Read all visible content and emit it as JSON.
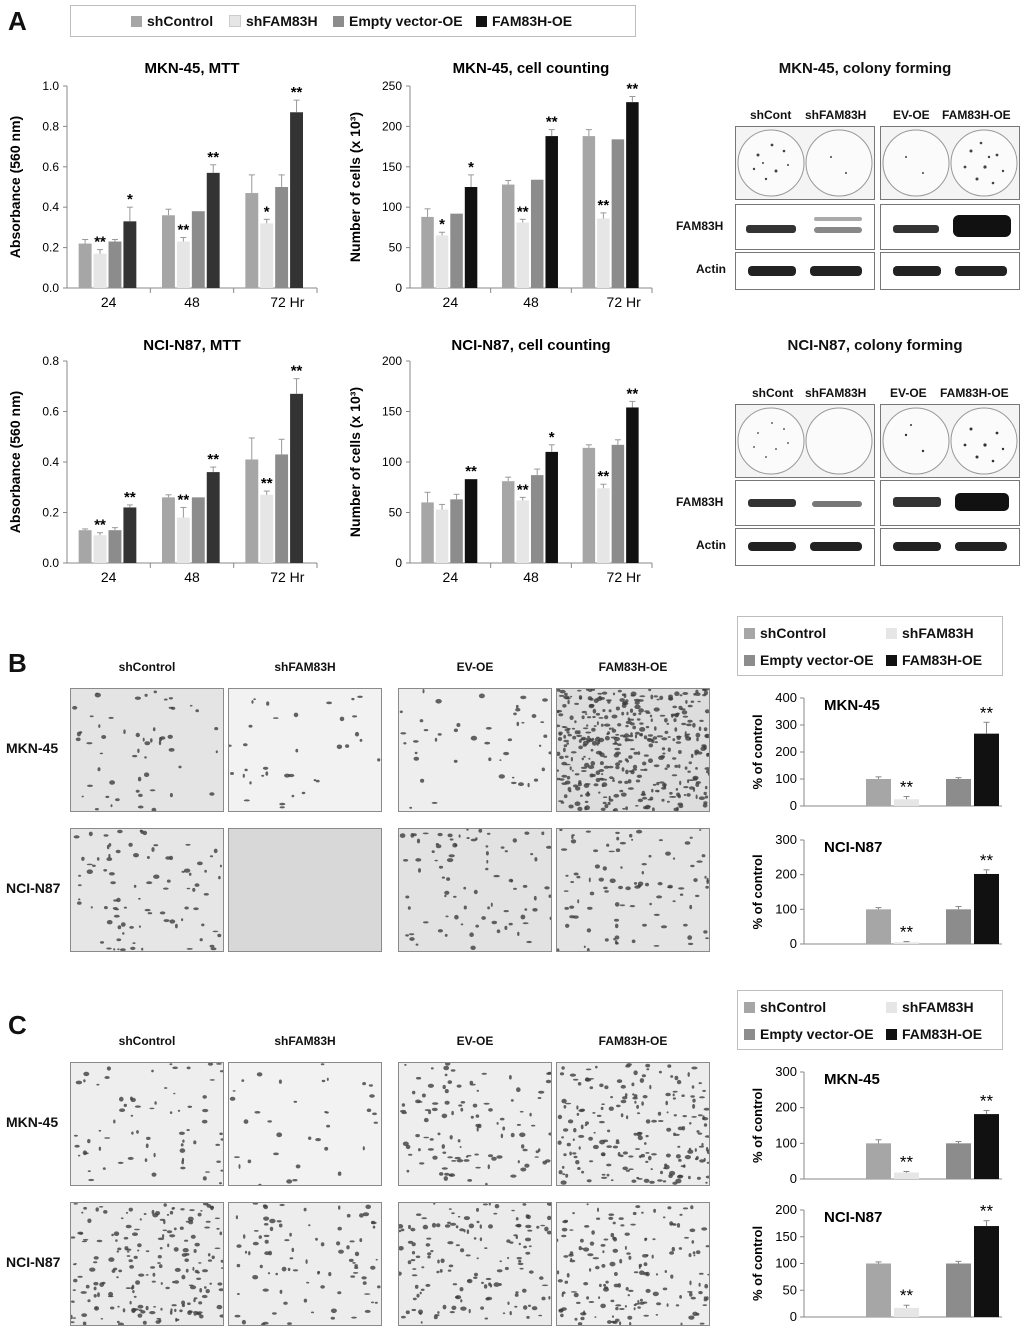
{
  "panels": {
    "a": "A",
    "b": "B",
    "c": "C"
  },
  "legend": [
    {
      "label": "shControl",
      "color": "#a6a6a6"
    },
    {
      "label": "shFAM83H",
      "color": "#e6e6e6"
    },
    {
      "label": "Empty vector-OE",
      "color": "#8c8c8c"
    },
    {
      "label": "FAM83H-OE",
      "color": "#111111"
    }
  ],
  "colony": {
    "mkn_title": "MKN-45, colony forming",
    "nci_title": "NCI-N87, colony forming",
    "lanes": [
      "shCont",
      "shFAM83H",
      "EV-OE",
      "FAM83H-OE"
    ],
    "rows": [
      "FAM83H",
      "Actin"
    ]
  },
  "micro": {
    "columns": [
      "shControl",
      "shFAM83H",
      "EV-OE",
      "FAM83H-OE"
    ],
    "rows": [
      "MKN-45",
      "NCI-N87"
    ]
  },
  "chart_data": [
    {
      "id": "mkn_mtt",
      "type": "bar",
      "title": "MKN-45, MTT",
      "ylabel": "Absorbance (560 nm)",
      "categories": [
        "24",
        "48",
        "72 Hr"
      ],
      "ylim": [
        0,
        1.0
      ],
      "yticks": [
        "0.0",
        "0.2",
        "0.4",
        "0.6",
        "0.8",
        "1.0"
      ],
      "series": [
        {
          "name": "shControl",
          "values": [
            0.22,
            0.36,
            0.47
          ],
          "err": [
            0.02,
            0.03,
            0.09
          ],
          "sig": [
            "",
            "",
            ""
          ]
        },
        {
          "name": "shFAM83H",
          "values": [
            0.17,
            0.23,
            0.32
          ],
          "err": [
            0.02,
            0.02,
            0.02
          ],
          "sig": [
            "**",
            "**",
            "*"
          ]
        },
        {
          "name": "Empty vector-OE",
          "values": [
            0.23,
            0.38,
            0.5
          ],
          "err": [
            0.01,
            0.0,
            0.06
          ],
          "sig": [
            "",
            "",
            ""
          ]
        },
        {
          "name": "FAM83H-OE",
          "values": [
            0.33,
            0.57,
            0.87
          ],
          "err": [
            0.07,
            0.04,
            0.06
          ],
          "sig": [
            "*",
            "**",
            "**"
          ]
        }
      ]
    },
    {
      "id": "mkn_count",
      "type": "bar",
      "title": "MKN-45, cell counting",
      "ylabel": "Number of cells (x 10³)",
      "categories": [
        "24",
        "48",
        "72 Hr"
      ],
      "ylim": [
        0,
        250
      ],
      "yticks": [
        "0",
        "50",
        "100",
        "150",
        "200",
        "250"
      ],
      "series": [
        {
          "name": "shControl",
          "values": [
            88,
            128,
            188
          ],
          "err": [
            10,
            5,
            8
          ],
          "sig": [
            "",
            "",
            ""
          ]
        },
        {
          "name": "shFAM83H",
          "values": [
            65,
            81,
            86
          ],
          "err": [
            4,
            4,
            7
          ],
          "sig": [
            "*",
            "**",
            "**"
          ]
        },
        {
          "name": "Empty vector-OE",
          "values": [
            92,
            134,
            184
          ],
          "err": [
            0,
            0,
            0
          ],
          "sig": [
            "",
            "",
            ""
          ]
        },
        {
          "name": "FAM83H-OE",
          "values": [
            125,
            188,
            230
          ],
          "err": [
            15,
            8,
            7
          ],
          "sig": [
            "*",
            "**",
            "**"
          ]
        }
      ]
    },
    {
      "id": "nci_mtt",
      "type": "bar",
      "title": "NCI-N87, MTT",
      "ylabel": "Absorbance (560 nm)",
      "categories": [
        "24",
        "48",
        "72 Hr"
      ],
      "ylim": [
        0,
        0.8
      ],
      "yticks": [
        "0.0",
        "0.2",
        "0.4",
        "0.6",
        "0.8"
      ],
      "series": [
        {
          "name": "shControl",
          "values": [
            0.13,
            0.26,
            0.41
          ],
          "err": [
            0.005,
            0.01,
            0.085
          ],
          "sig": [
            "",
            "",
            ""
          ]
        },
        {
          "name": "shFAM83H",
          "values": [
            0.11,
            0.18,
            0.27
          ],
          "err": [
            0.01,
            0.04,
            0.015
          ],
          "sig": [
            "**",
            "**",
            "**"
          ]
        },
        {
          "name": "Empty vector-OE",
          "values": [
            0.13,
            0.26,
            0.43
          ],
          "err": [
            0.01,
            0.0,
            0.06
          ],
          "sig": [
            "",
            "",
            ""
          ]
        },
        {
          "name": "FAM83H-OE",
          "values": [
            0.22,
            0.36,
            0.67
          ],
          "err": [
            0.01,
            0.02,
            0.06
          ],
          "sig": [
            "**",
            "**",
            "**"
          ]
        }
      ]
    },
    {
      "id": "nci_count",
      "type": "bar",
      "title": "NCI-N87, cell counting",
      "ylabel": "Number of cells (x 10³)",
      "categories": [
        "24",
        "48",
        "72 Hr"
      ],
      "ylim": [
        0,
        200
      ],
      "yticks": [
        "0",
        "50",
        "100",
        "150",
        "200"
      ],
      "series": [
        {
          "name": "shControl",
          "values": [
            60,
            81,
            114
          ],
          "err": [
            10,
            4,
            3
          ],
          "sig": [
            "",
            "",
            ""
          ]
        },
        {
          "name": "shFAM83H",
          "values": [
            53,
            62,
            74
          ],
          "err": [
            5,
            3,
            4
          ],
          "sig": [
            "",
            "**",
            "**"
          ]
        },
        {
          "name": "Empty vector-OE",
          "values": [
            63,
            87,
            117
          ],
          "err": [
            5,
            6,
            5
          ],
          "sig": [
            "",
            "",
            ""
          ]
        },
        {
          "name": "FAM83H-OE",
          "values": [
            83,
            110,
            154
          ],
          "err": [
            0,
            7,
            6
          ],
          "sig": [
            "**",
            "*",
            "**"
          ]
        }
      ]
    },
    {
      "id": "b_mkn",
      "type": "bar",
      "title": "MKN-45",
      "ylabel": "% of control",
      "ylim": [
        0,
        400
      ],
      "yticks": [
        "0",
        "100",
        "200",
        "300",
        "400"
      ],
      "groups": [
        [
          {
            "name": "shControl",
            "value": 100,
            "err": 8,
            "sig": ""
          },
          {
            "name": "shFAM83H",
            "value": 25,
            "err": 10,
            "sig": "**"
          }
        ],
        [
          {
            "name": "Empty vector-OE",
            "value": 100,
            "err": 5,
            "sig": ""
          },
          {
            "name": "FAM83H-OE",
            "value": 268,
            "err": 42,
            "sig": "**"
          }
        ]
      ]
    },
    {
      "id": "b_nci",
      "type": "bar",
      "title": "NCI-N87",
      "ylabel": "% of control",
      "ylim": [
        0,
        300
      ],
      "yticks": [
        "0",
        "100",
        "200",
        "300"
      ],
      "groups": [
        [
          {
            "name": "shControl",
            "value": 100,
            "err": 5,
            "sig": ""
          },
          {
            "name": "shFAM83H",
            "value": 5,
            "err": 2,
            "sig": "**"
          }
        ],
        [
          {
            "name": "Empty vector-OE",
            "value": 100,
            "err": 8,
            "sig": ""
          },
          {
            "name": "FAM83H-OE",
            "value": 202,
            "err": 12,
            "sig": "**"
          }
        ]
      ]
    },
    {
      "id": "c_mkn",
      "type": "bar",
      "title": "MKN-45",
      "ylabel": "% of control",
      "ylim": [
        0,
        300
      ],
      "yticks": [
        "0",
        "100",
        "200",
        "300"
      ],
      "groups": [
        [
          {
            "name": "shControl",
            "value": 100,
            "err": 10,
            "sig": ""
          },
          {
            "name": "shFAM83H",
            "value": 18,
            "err": 3,
            "sig": "**"
          }
        ],
        [
          {
            "name": "Empty vector-OE",
            "value": 100,
            "err": 5,
            "sig": ""
          },
          {
            "name": "FAM83H-OE",
            "value": 182,
            "err": 10,
            "sig": "**"
          }
        ]
      ]
    },
    {
      "id": "c_nci",
      "type": "bar",
      "title": "NCI-N87",
      "ylabel": "% of control",
      "ylim": [
        0,
        200
      ],
      "yticks": [
        "0",
        "50",
        "100",
        "150",
        "200"
      ],
      "groups": [
        [
          {
            "name": "shControl",
            "value": 100,
            "err": 3,
            "sig": ""
          },
          {
            "name": "shFAM83H",
            "value": 17,
            "err": 5,
            "sig": "**"
          }
        ],
        [
          {
            "name": "Empty vector-OE",
            "value": 100,
            "err": 4,
            "sig": ""
          },
          {
            "name": "FAM83H-OE",
            "value": 170,
            "err": 10,
            "sig": "**"
          }
        ]
      ]
    }
  ]
}
